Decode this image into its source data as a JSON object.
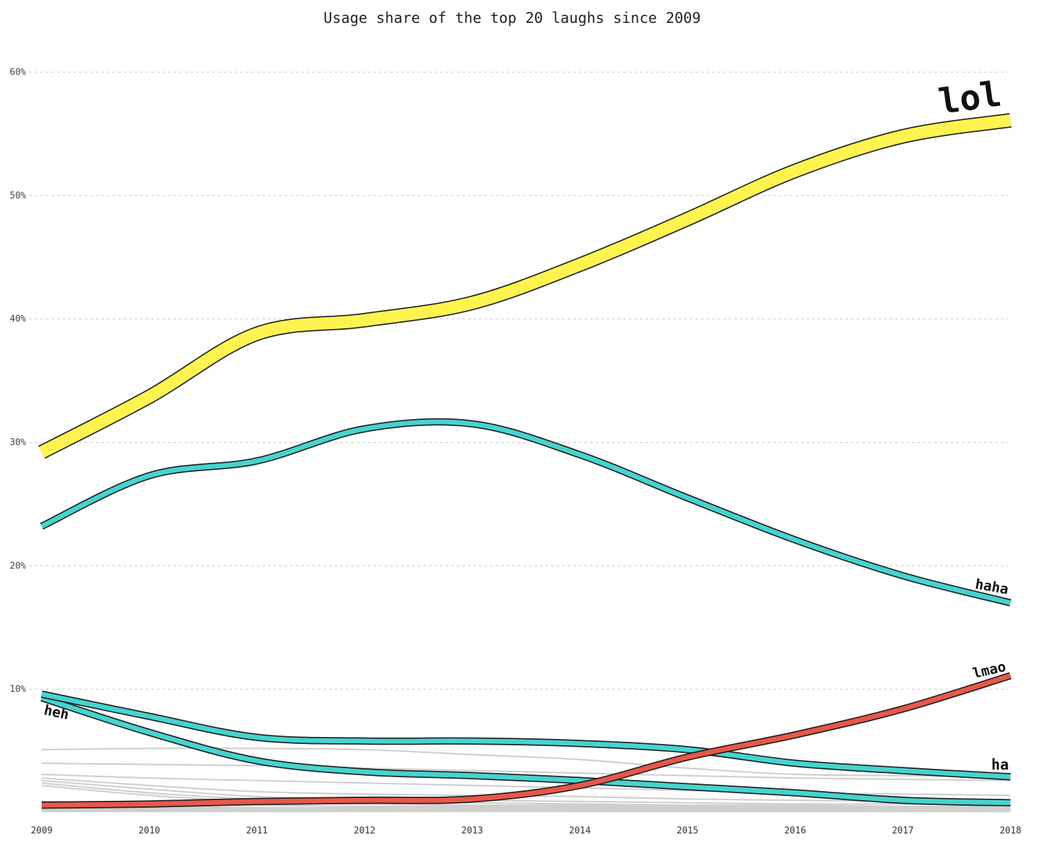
{
  "chart_data": {
    "type": "line",
    "title": "Usage share of the top 20 laughs since 2009",
    "xlabel": "",
    "ylabel": "",
    "x": [
      2009,
      2010,
      2011,
      2012,
      2013,
      2014,
      2015,
      2016,
      2017,
      2018
    ],
    "xlim": [
      2009,
      2018
    ],
    "ylim": [
      0,
      60
    ],
    "yticks": [
      "10%",
      "20%",
      "30%",
      "40%",
      "50%",
      "60%"
    ],
    "xticks": [
      "2009",
      "2010",
      "2011",
      "2012",
      "2013",
      "2014",
      "2015",
      "2016",
      "2017",
      "2018"
    ],
    "grid": "horizontal dashed",
    "legend": "none (direct labels)",
    "series": [
      {
        "name": "lol",
        "color": "#fff44f",
        "values": [
          29.2,
          33.7,
          38.8,
          39.9,
          41.3,
          44.4,
          48.1,
          52.0,
          54.8,
          56.1
        ]
      },
      {
        "name": "haha",
        "color": "#45d4cf",
        "values": [
          23.2,
          27.3,
          28.5,
          31.1,
          31.5,
          29.0,
          25.5,
          22.1,
          19.2,
          17.0
        ]
      },
      {
        "name": "lmao",
        "color": "#e8574a",
        "values": [
          0.6,
          0.7,
          0.9,
          1.0,
          1.1,
          2.2,
          4.5,
          6.3,
          8.4,
          11.1
        ]
      },
      {
        "name": "ha",
        "color": "#45d4cf",
        "values": [
          9.6,
          7.8,
          6.1,
          5.8,
          5.8,
          5.6,
          5.1,
          4.0,
          3.4,
          2.9
        ]
      },
      {
        "name": "heh",
        "color": "#45d4cf",
        "values": [
          9.3,
          6.5,
          4.2,
          3.3,
          3.0,
          2.6,
          2.1,
          1.6,
          1.0,
          0.8
        ]
      },
      {
        "values": [
          5.1,
          5.2,
          5.2,
          5.1,
          4.7,
          4.3,
          3.6,
          3.1,
          3.0,
          2.9
        ]
      },
      {
        "values": [
          4.0,
          3.9,
          3.8,
          3.6,
          3.4,
          3.2,
          3.0,
          2.8,
          2.7,
          2.6
        ]
      },
      {
        "values": [
          3.1,
          2.8,
          2.6,
          2.4,
          2.2,
          2.0,
          1.8,
          1.6,
          1.5,
          1.4
        ]
      },
      {
        "values": [
          2.8,
          2.2,
          1.7,
          1.5,
          1.4,
          1.3,
          1.1,
          1.0,
          0.9,
          0.8
        ]
      },
      {
        "values": [
          2.6,
          1.9,
          1.3,
          1.1,
          1.0,
          0.9,
          0.8,
          0.7,
          0.7,
          0.6
        ]
      },
      {
        "values": [
          2.4,
          1.6,
          1.1,
          0.9,
          0.8,
          0.7,
          0.6,
          0.6,
          0.5,
          0.5
        ]
      },
      {
        "values": [
          2.2,
          1.4,
          0.9,
          0.7,
          0.6,
          0.5,
          0.5,
          0.4,
          0.4,
          0.4
        ]
      },
      {
        "values": [
          0.9,
          0.8,
          0.8,
          0.7,
          0.6,
          0.6,
          0.5,
          0.5,
          0.5,
          0.4
        ]
      },
      {
        "values": [
          0.7,
          0.6,
          0.6,
          0.5,
          0.5,
          0.4,
          0.4,
          0.4,
          0.3,
          0.3
        ]
      },
      {
        "values": [
          0.5,
          0.5,
          0.4,
          0.4,
          0.4,
          0.3,
          0.3,
          0.3,
          0.3,
          0.3
        ]
      },
      {
        "values": [
          0.4,
          0.4,
          0.3,
          0.3,
          0.3,
          0.3,
          0.2,
          0.2,
          0.2,
          0.2
        ]
      },
      {
        "values": [
          0.3,
          0.3,
          0.3,
          0.2,
          0.2,
          0.2,
          0.2,
          0.2,
          0.2,
          0.2
        ]
      },
      {
        "values": [
          0.2,
          0.2,
          0.2,
          0.2,
          0.2,
          0.1,
          0.1,
          0.1,
          0.1,
          0.1
        ]
      },
      {
        "values": [
          0.1,
          0.1,
          0.1,
          0.1,
          0.1,
          0.1,
          0.1,
          0.1,
          0.1,
          0.1
        ]
      },
      {
        "values": [
          0.1,
          0.1,
          0.1,
          0.1,
          0.1,
          0.1,
          0.1,
          0.1,
          0.1,
          0.1
        ]
      }
    ]
  }
}
